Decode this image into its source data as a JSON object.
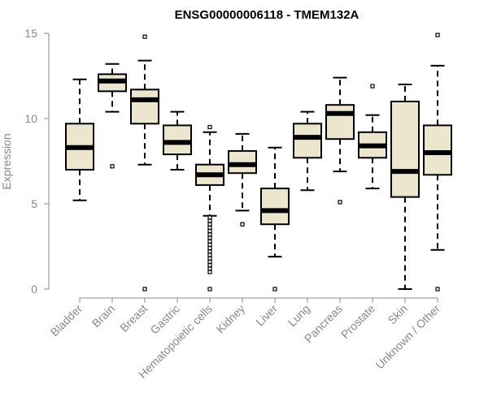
{
  "chart_data": {
    "type": "box",
    "title": "ENSG00000006118 - TMEM132A",
    "xlabel": "",
    "ylabel": "Expression",
    "ylim": [
      0,
      15
    ],
    "yticks": [
      0,
      5,
      10,
      15
    ],
    "grid": false,
    "box_fill": "#ede6cf",
    "line_color": "#000000",
    "axis_color": "#888888",
    "categories": [
      "Bladder",
      "Brain",
      "Breast",
      "Gastric",
      "Hematopoietic cells",
      "Kidney",
      "Liver",
      "Lung",
      "Pancreas",
      "Prostate",
      "Skin",
      "Unknown / Other"
    ],
    "boxes": [
      {
        "name": "Bladder",
        "whisker_low": 5.2,
        "q1": 7.0,
        "median": 8.3,
        "q3": 9.7,
        "whisker_high": 12.3,
        "outliers": []
      },
      {
        "name": "Brain",
        "whisker_low": 10.4,
        "q1": 11.6,
        "median": 12.2,
        "q3": 12.6,
        "whisker_high": 13.2,
        "outliers": [
          7.2
        ]
      },
      {
        "name": "Breast",
        "whisker_low": 7.3,
        "q1": 9.7,
        "median": 11.1,
        "q3": 11.7,
        "whisker_high": 13.4,
        "outliers": [
          0,
          14.8
        ]
      },
      {
        "name": "Gastric",
        "whisker_low": 7.0,
        "q1": 7.9,
        "median": 8.6,
        "q3": 9.6,
        "whisker_high": 10.4,
        "outliers": []
      },
      {
        "name": "Hematopoietic cells",
        "whisker_low": 4.3,
        "q1": 6.1,
        "median": 6.7,
        "q3": 7.3,
        "whisker_high": 9.2,
        "outliers": [
          9.5,
          0,
          1.0,
          1.2,
          1.4,
          1.6,
          1.8,
          2.0,
          2.2,
          2.4,
          2.6,
          2.8,
          3.0,
          3.2,
          3.4,
          3.6,
          3.8,
          4.0,
          4.2
        ]
      },
      {
        "name": "Kidney",
        "whisker_low": 4.6,
        "q1": 6.8,
        "median": 7.3,
        "q3": 8.1,
        "whisker_high": 9.1,
        "outliers": [
          3.8
        ]
      },
      {
        "name": "Liver",
        "whisker_low": 1.9,
        "q1": 3.8,
        "median": 4.6,
        "q3": 5.9,
        "whisker_high": 8.3,
        "outliers": [
          0
        ]
      },
      {
        "name": "Lung",
        "whisker_low": 5.8,
        "q1": 7.7,
        "median": 8.9,
        "q3": 9.7,
        "whisker_high": 10.4,
        "outliers": []
      },
      {
        "name": "Pancreas",
        "whisker_low": 6.9,
        "q1": 8.8,
        "median": 10.3,
        "q3": 10.8,
        "whisker_high": 12.4,
        "outliers": [
          5.1
        ]
      },
      {
        "name": "Prostate",
        "whisker_low": 5.9,
        "q1": 7.7,
        "median": 8.4,
        "q3": 9.2,
        "whisker_high": 10.2,
        "outliers": [
          11.9
        ]
      },
      {
        "name": "Skin",
        "whisker_low": 0,
        "q1": 5.4,
        "median": 6.9,
        "q3": 11.0,
        "whisker_high": 12.0,
        "outliers": []
      },
      {
        "name": "Unknown / Other",
        "whisker_low": 2.3,
        "q1": 6.7,
        "median": 8.0,
        "q3": 9.6,
        "whisker_high": 13.1,
        "outliers": [
          0,
          14.9
        ]
      }
    ]
  }
}
